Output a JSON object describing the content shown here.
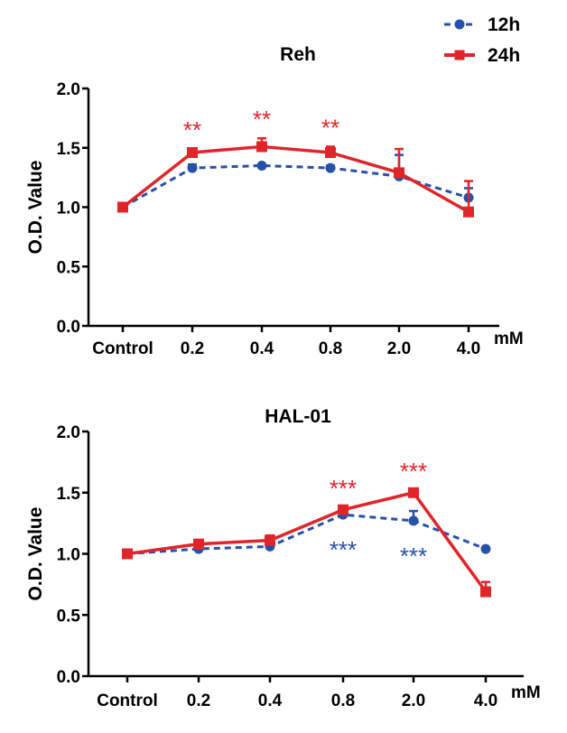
{
  "colors": {
    "series_12h": "#2750a8",
    "series_24h": "#e0252a"
  },
  "legend": [
    {
      "name": "12h",
      "style": "dashed-circle"
    },
    {
      "name": "24h",
      "style": "solid-square"
    }
  ],
  "chart_data": [
    {
      "type": "line",
      "title": "Reh",
      "xlabel": "mM",
      "ylabel": "O.D. Value",
      "categories": [
        "Control",
        "0.2",
        "0.4",
        "0.8",
        "2.0",
        "4.0"
      ],
      "ylim": [
        0.0,
        2.0
      ],
      "yticks": [
        "0.0",
        "0.5",
        "1.0",
        "1.5",
        "2.0"
      ],
      "series": [
        {
          "name": "12h",
          "values": [
            1.0,
            1.33,
            1.35,
            1.33,
            1.26,
            1.08
          ],
          "errors": [
            0.01,
            0.03,
            0.01,
            0.02,
            0.18,
            0.08
          ]
        },
        {
          "name": "24h",
          "values": [
            1.0,
            1.46,
            1.51,
            1.46,
            1.29,
            0.96
          ],
          "errors": [
            0.01,
            0.03,
            0.07,
            0.05,
            0.2,
            0.26
          ]
        }
      ],
      "annotations": [
        {
          "text": "**",
          "category": "0.2",
          "series": "24h",
          "position": "above"
        },
        {
          "text": "**",
          "category": "0.4",
          "series": "24h",
          "position": "above"
        },
        {
          "text": "**",
          "category": "0.8",
          "series": "24h",
          "position": "above"
        }
      ]
    },
    {
      "type": "line",
      "title": "HAL-01",
      "xlabel": "mM",
      "ylabel": "O.D. Value",
      "categories": [
        "Control",
        "0.2",
        "0.4",
        "0.8",
        "2.0",
        "4.0"
      ],
      "ylim": [
        0.0,
        2.0
      ],
      "yticks": [
        "0.0",
        "0.5",
        "1.0",
        "1.5",
        "2.0"
      ],
      "series": [
        {
          "name": "12h",
          "values": [
            1.0,
            1.04,
            1.06,
            1.32,
            1.27,
            1.04
          ],
          "errors": [
            0.01,
            0.07,
            0.02,
            0.02,
            0.08,
            0.01
          ]
        },
        {
          "name": "24h",
          "values": [
            1.0,
            1.08,
            1.11,
            1.36,
            1.5,
            0.69
          ],
          "errors": [
            0.01,
            0.02,
            0.04,
            0.02,
            0.02,
            0.08
          ]
        }
      ],
      "annotations": [
        {
          "text": "***",
          "category": "0.8",
          "series": "24h",
          "position": "above"
        },
        {
          "text": "***",
          "category": "2.0",
          "series": "24h",
          "position": "above"
        },
        {
          "text": "***",
          "category": "0.8",
          "series": "12h",
          "position": "below"
        },
        {
          "text": "***",
          "category": "2.0",
          "series": "12h",
          "position": "below"
        }
      ]
    }
  ]
}
